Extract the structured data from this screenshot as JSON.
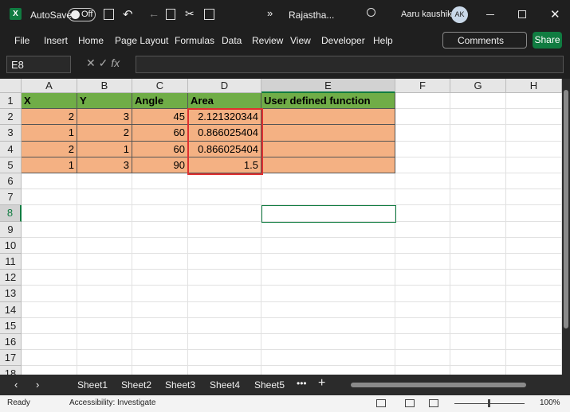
{
  "title_bar": {
    "autosave": "AutoSave",
    "toggle": "Off",
    "file_name": "Rajastha...",
    "user": "Aaru kaushik",
    "avatar": "AK"
  },
  "menu": [
    "File",
    "Insert",
    "Home",
    "Page Layout",
    "Formulas",
    "Data",
    "Review",
    "View",
    "Developer",
    "Help"
  ],
  "buttons": {
    "comments": "Comments",
    "share": "Share"
  },
  "name_box": "E8",
  "columns": [
    "A",
    "B",
    "C",
    "D",
    "E",
    "F",
    "G",
    "H"
  ],
  "rows": [
    1,
    2,
    3,
    4,
    5,
    6,
    7,
    8,
    9,
    10,
    11,
    12,
    13,
    14,
    15,
    16,
    17,
    18
  ],
  "table": {
    "header": [
      "X",
      "Y",
      "Angle",
      "Area",
      "User defined function"
    ],
    "rows": [
      [
        2,
        3,
        45,
        2.121320344
      ],
      [
        1,
        2,
        60,
        0.866025404
      ],
      [
        2,
        1,
        60,
        0.866025404
      ],
      [
        1,
        3,
        90,
        1.5
      ]
    ]
  },
  "sheets": [
    "Sheet1",
    "Sheet2",
    "Sheet3",
    "Sheet4",
    "Sheet5"
  ],
  "status": {
    "ready": "Ready",
    "accessibility": "Accessibility: Investigate",
    "zoom": "100%"
  }
}
